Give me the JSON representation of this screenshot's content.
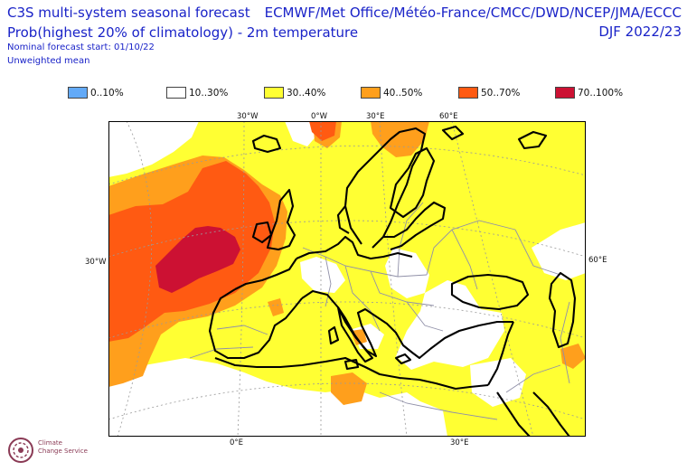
{
  "header": {
    "title_left_1": "C3S multi-system seasonal forecast",
    "title_left_2": "Prob(highest 20% of climatology) - 2m temperature",
    "subtitle_1": "Nominal forecast start: 01/10/22",
    "subtitle_2": "Unweighted mean",
    "title_right_1": "ECMWF/Met Office/Météo-France/CMCC/DWD/NCEP/JMA/ECCC",
    "title_right_2": "DJF 2022/23"
  },
  "legend": [
    {
      "label": "0..10%",
      "color": "#63aaf8"
    },
    {
      "label": "10..30%",
      "color": "#ffffff"
    },
    {
      "label": "30..40%",
      "color": "#ffff33"
    },
    {
      "label": "40..50%",
      "color": "#ff9f1c"
    },
    {
      "label": "50..70%",
      "color": "#ff5a12"
    },
    {
      "label": "70..100%",
      "color": "#cc1133"
    }
  ],
  "map": {
    "projection": "Lambert conformal",
    "region": "Europe",
    "variable": "Probability of 2m temperature in highest 20% of climatology",
    "dominant_category": "30..40%",
    "top_labels": [
      "30°W",
      "0°W",
      "30°E",
      "60°E"
    ],
    "side_left_label": "30°W",
    "side_right_label": "60°E",
    "bottom_labels": [
      "0°E",
      "30°E"
    ]
  },
  "logo": {
    "name": "Climate Change Service",
    "icon": "copernicus-climate-logo",
    "text_1": "Climate",
    "text_2": "Change Service"
  }
}
